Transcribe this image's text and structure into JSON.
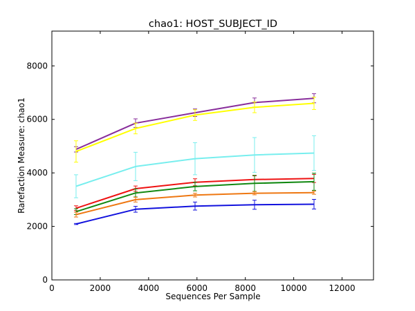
{
  "chart_data": {
    "type": "line",
    "title": "chao1: HOST_SUBJECT_ID",
    "xlabel": "Sequences Per Sample",
    "ylabel": "Rarefaction Measure: chao1",
    "xlim": [
      0,
      13300
    ],
    "ylim": [
      0,
      9300
    ],
    "xticks": [
      0,
      2000,
      4000,
      6000,
      8000,
      10000,
      12000
    ],
    "yticks": [
      0,
      2000,
      4000,
      6000,
      8000
    ],
    "grid": false,
    "x": [
      1000,
      3460,
      5920,
      8380,
      10840
    ],
    "series": [
      {
        "color": "#882d9b",
        "values": [
          4880,
          5860,
          6250,
          6630,
          6790
        ],
        "errors": [
          100,
          160,
          140,
          170,
          170
        ]
      },
      {
        "color": "#ffff00",
        "values": [
          4800,
          5660,
          6160,
          6450,
          6600
        ],
        "errors": [
          400,
          200,
          200,
          200,
          230
        ]
      },
      {
        "color": "#77eeee",
        "values": [
          3500,
          4240,
          4530,
          4670,
          4740
        ],
        "errors": [
          430,
          530,
          600,
          650,
          650
        ]
      },
      {
        "color": "#ee1111",
        "values": [
          2680,
          3410,
          3650,
          3750,
          3790
        ],
        "errors": [
          90,
          100,
          130,
          140,
          150
        ]
      },
      {
        "color": "#118811",
        "values": [
          2550,
          3250,
          3490,
          3610,
          3670
        ],
        "errors": [
          110,
          150,
          160,
          300,
          320
        ]
      },
      {
        "color": "#ee7711",
        "values": [
          2440,
          3000,
          3170,
          3240,
          3260
        ],
        "errors": [
          90,
          90,
          70,
          60,
          60
        ]
      },
      {
        "color": "#1111dd",
        "values": [
          2090,
          2640,
          2760,
          2810,
          2830
        ],
        "errors": [
          20,
          110,
          150,
          170,
          180
        ]
      }
    ]
  }
}
